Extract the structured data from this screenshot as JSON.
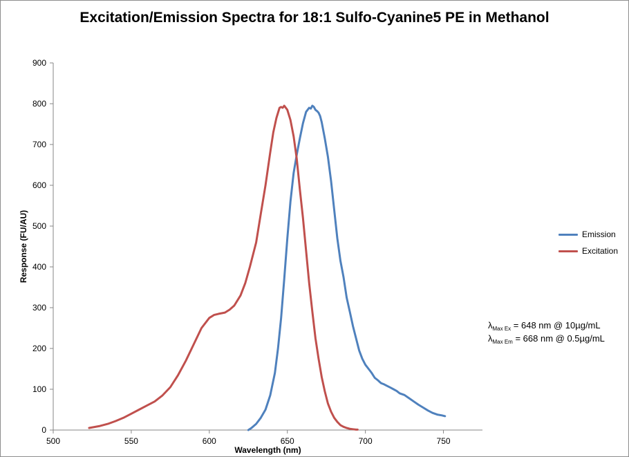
{
  "chart_data": {
    "type": "line",
    "title": "Excitation/Emission Spectra for 18:1 Sulfo-Cyanine5 PE in Methanol",
    "xlabel": "Wavelength (nm)",
    "ylabel": "Response (FU/AU)",
    "xlim": [
      500,
      775
    ],
    "ylim": [
      0,
      900
    ],
    "xticks": [
      "500",
      "550",
      "600",
      "650",
      "700",
      "750"
    ],
    "yticks": [
      "0",
      "100",
      "200",
      "300",
      "400",
      "500",
      "600",
      "700",
      "800",
      "900"
    ],
    "grid": false,
    "legend_position": "right",
    "series": [
      {
        "name": "Emission",
        "color": "#4f81bd",
        "x": [
          625,
          627,
          630,
          633,
          636,
          639,
          642,
          644,
          646,
          648,
          650,
          652,
          654,
          656,
          658,
          660,
          662,
          664,
          665,
          666,
          667,
          668,
          669,
          670,
          671,
          672,
          674,
          676,
          678,
          680,
          682,
          684,
          686,
          688,
          690,
          692,
          694,
          696,
          698,
          700,
          702,
          704,
          706,
          708,
          710,
          712,
          714,
          716,
          718,
          720,
          722,
          725,
          728,
          731,
          734,
          737,
          740,
          743,
          746,
          749,
          751
        ],
        "y": [
          0,
          5,
          15,
          30,
          50,
          85,
          140,
          200,
          275,
          370,
          470,
          560,
          630,
          675,
          715,
          752,
          780,
          790,
          788,
          795,
          792,
          785,
          782,
          778,
          770,
          755,
          715,
          670,
          610,
          540,
          470,
          415,
          375,
          325,
          290,
          255,
          225,
          195,
          175,
          160,
          150,
          140,
          128,
          122,
          115,
          112,
          108,
          104,
          100,
          96,
          90,
          86,
          78,
          70,
          62,
          55,
          48,
          42,
          38,
          36,
          34
        ]
      },
      {
        "name": "Excitation",
        "color": "#c0504d",
        "x": [
          523,
          530,
          535,
          540,
          545,
          550,
          555,
          560,
          565,
          570,
          575,
          580,
          585,
          590,
          595,
          600,
          603,
          606,
          610,
          613,
          616,
          620,
          623,
          626,
          630,
          633,
          636,
          639,
          641,
          643,
          645,
          646,
          647,
          648,
          649,
          650,
          652,
          654,
          656,
          658,
          660,
          662,
          664,
          666,
          668,
          670,
          672,
          674,
          676,
          678,
          680,
          682,
          684,
          686,
          688,
          690,
          692,
          694,
          695
        ],
        "y": [
          5,
          10,
          15,
          22,
          30,
          40,
          50,
          60,
          70,
          85,
          105,
          135,
          170,
          210,
          250,
          275,
          282,
          285,
          288,
          295,
          305,
          330,
          360,
          400,
          460,
          530,
          600,
          680,
          730,
          765,
          790,
          792,
          790,
          795,
          790,
          785,
          760,
          720,
          665,
          590,
          520,
          440,
          360,
          290,
          225,
          175,
          130,
          95,
          65,
          45,
          30,
          20,
          12,
          8,
          5,
          3,
          2,
          1,
          1
        ]
      }
    ],
    "annotations": [
      {
        "symbol": "λ",
        "subscript": "Max Ex",
        "text": " = 648 nm @ 10µg/mL"
      },
      {
        "symbol": "λ",
        "subscript": "Max Em",
        "text": " = 668 nm @ 0.5µg/mL"
      }
    ]
  }
}
